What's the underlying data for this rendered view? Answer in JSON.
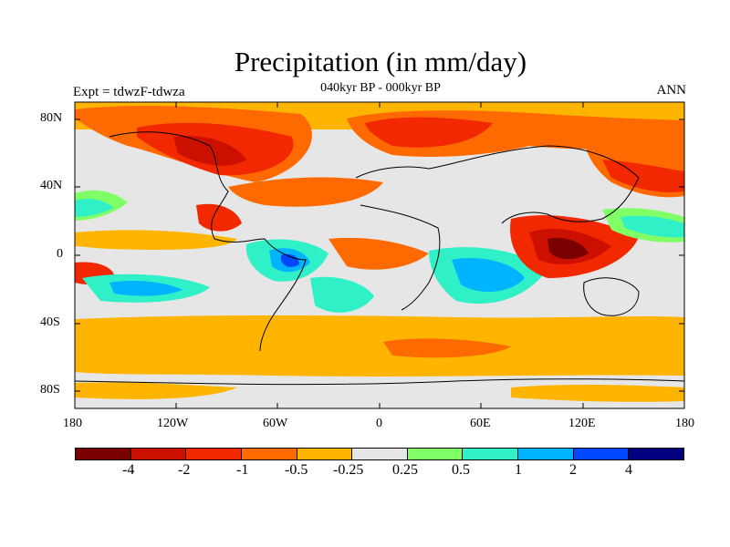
{
  "title": "Precipitation (in mm/day)",
  "subtitle": "040kyr BP - 000kyr BP",
  "experiment": "Expt = tdwzF-tdwza",
  "season": "ANN",
  "x_ticks": [
    "180",
    "120W",
    "60W",
    "0",
    "60E",
    "120E",
    "180"
  ],
  "y_ticks": [
    "80N",
    "40N",
    "0",
    "40S",
    "80S"
  ],
  "colorbar": {
    "labels": [
      "-4",
      "-2",
      "-1",
      "-0.5",
      "-0.25",
      "0.25",
      "0.5",
      "1",
      "2",
      "4"
    ],
    "colors": [
      "#7a0000",
      "#cc1000",
      "#f22800",
      "#ff6a00",
      "#ffb400",
      "#e6e6e6",
      "#80ff66",
      "#30f0c8",
      "#00b4ff",
      "#0048ff",
      "#000080"
    ]
  },
  "colors": {
    "neutral": "#e6e6e6",
    "land_outline": "#000000"
  }
}
